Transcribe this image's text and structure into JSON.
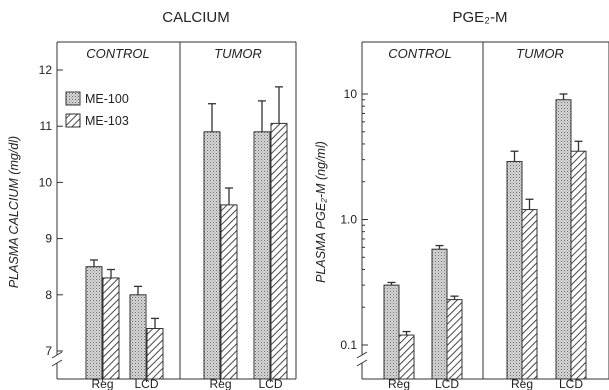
{
  "chart_data": [
    {
      "type": "bar",
      "title": "CALCIUM",
      "ylabel": "PLASMA CALCIUM (mg/dl)",
      "scale": "linear",
      "ylim": [
        6.5,
        12.3
      ],
      "yticks": [
        "7",
        "8",
        "9",
        "10",
        "11",
        "12"
      ],
      "groups": [
        {
          "name": "CONTROL",
          "categories": [
            "Reg",
            "LCD"
          ]
        },
        {
          "name": "TUMOR",
          "categories": [
            "Reg",
            "LCD"
          ]
        }
      ],
      "series": [
        {
          "name": "ME-100",
          "pattern": "stipple",
          "values": [
            8.5,
            8.0,
            10.9,
            10.9
          ],
          "errors": [
            0.12,
            0.15,
            0.5,
            0.55
          ]
        },
        {
          "name": "ME-103",
          "pattern": "hatch",
          "values": [
            8.3,
            7.4,
            9.6,
            11.05
          ],
          "errors": [
            0.15,
            0.18,
            0.3,
            0.65
          ]
        }
      ],
      "legend": "top-left",
      "axis_break": true
    },
    {
      "type": "bar",
      "title": "PGE₂-M",
      "ylabel": "PLASMA PGE₂-M (ng/ml)",
      "scale": "log",
      "ylim": [
        0.08,
        14
      ],
      "yticks": [
        "0.1",
        "1.0",
        "10"
      ],
      "groups": [
        {
          "name": "CONTROL",
          "categories": [
            "Reg",
            "LCD"
          ]
        },
        {
          "name": "TUMOR",
          "categories": [
            "Reg",
            "LCD"
          ]
        }
      ],
      "series": [
        {
          "name": "ME-100",
          "pattern": "stipple",
          "values": [
            0.3,
            0.58,
            2.9,
            9.0
          ],
          "errors": [
            0.015,
            0.04,
            0.6,
            1.0
          ]
        },
        {
          "name": "ME-103",
          "pattern": "hatch",
          "values": [
            0.12,
            0.23,
            1.2,
            3.5
          ],
          "errors": [
            0.008,
            0.015,
            0.25,
            0.7
          ]
        }
      ],
      "axis_break": true
    }
  ]
}
